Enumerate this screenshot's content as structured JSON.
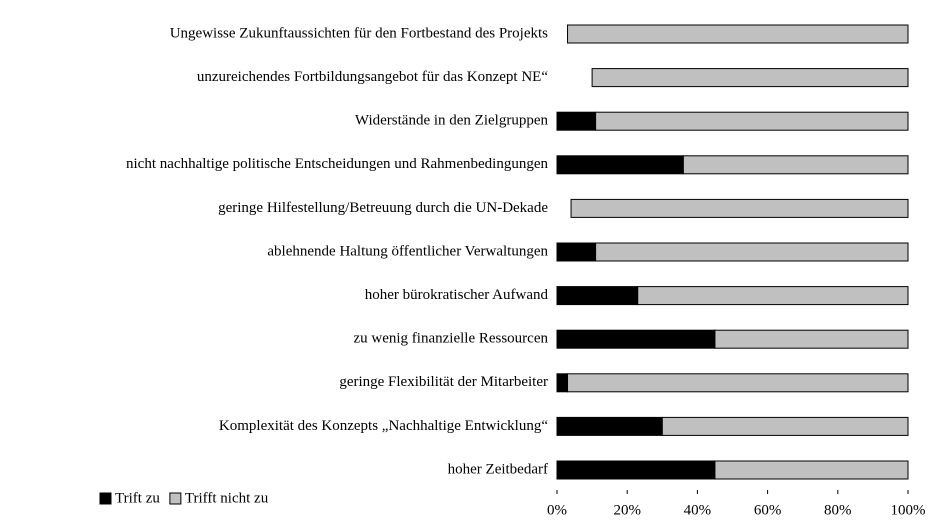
{
  "chart_data": {
    "type": "stacked-barh",
    "categories": [
      "Ungewisse Zukunftaussichten für den Fortbestand des Projekts",
      "unzureichendes Fortbildungsangebot für das Konzept NE“",
      "Widerstände in den Zielgruppen",
      "nicht nachhaltige politische Entscheidungen und Rahmenbedingungen",
      "geringe Hilfestellung/Betreuung durch die UN-Dekade",
      "ablehnende Haltung öffentlicher Verwaltungen",
      "hoher bürokratischer Aufwand",
      "zu wenig finanzielle Ressourcen",
      "geringe Flexibilität der Mitarbeiter",
      "Komplexität des Konzepts „Nachhaltige Entwicklung“",
      "hoher Zeitbedarf"
    ],
    "series": [
      {
        "name": "Trift zu",
        "color": "#000000",
        "values": [
          0,
          0,
          11,
          36,
          0,
          11,
          23,
          45,
          3,
          30,
          45
        ]
      },
      {
        "color": "none",
        "values": [
          3,
          10,
          0,
          0,
          4,
          0,
          0,
          0,
          0,
          0,
          0
        ]
      },
      {
        "name": "Trifft nicht zu",
        "color": "#c0c0c0",
        "values": [
          97,
          90,
          89,
          64,
          96,
          89,
          77,
          55,
          97,
          70,
          55
        ]
      }
    ],
    "xlim": [
      0,
      100
    ],
    "xticks": [
      {
        "value": 0,
        "label": "0%"
      },
      {
        "value": 20,
        "label": "20%"
      },
      {
        "value": 40,
        "label": "40%"
      },
      {
        "value": 60,
        "label": "60%"
      },
      {
        "value": 80,
        "label": "80%"
      },
      {
        "value": 100,
        "label": "100%"
      }
    ],
    "legend": "bottom-left"
  }
}
